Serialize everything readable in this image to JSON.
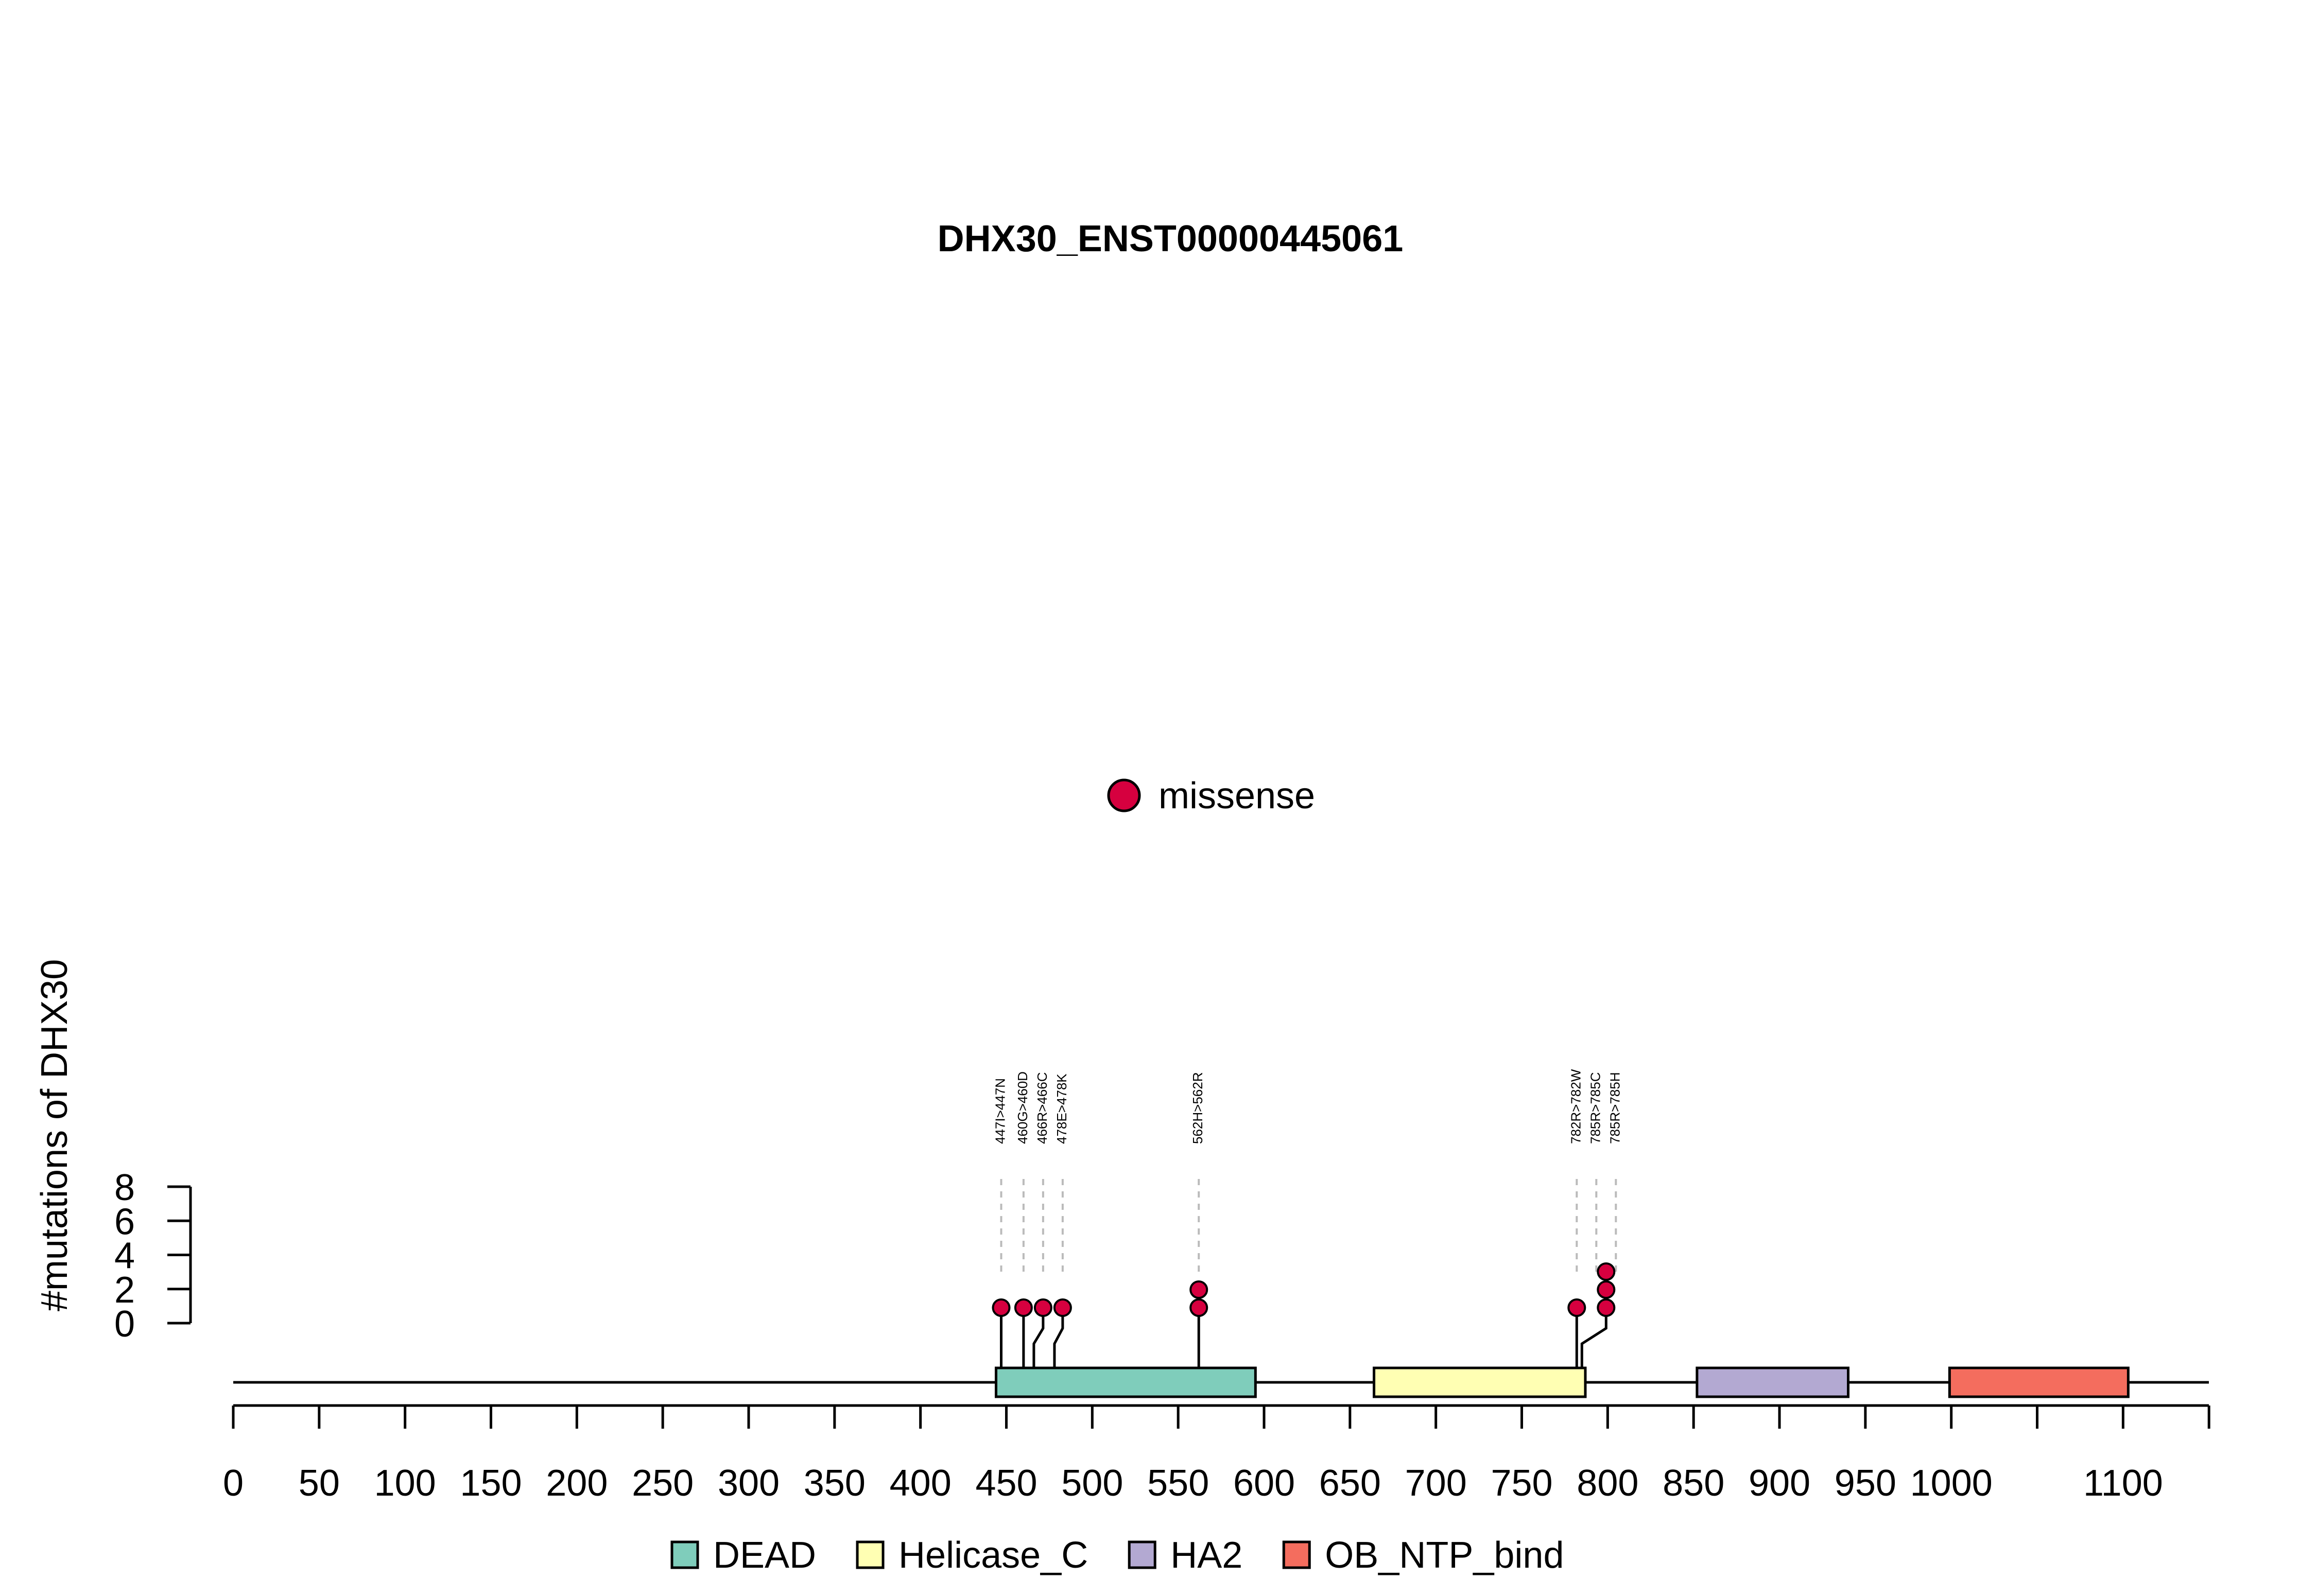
{
  "chart_data": {
    "type": "lollipop",
    "title": "DHX30_ENST00000445061",
    "ylabel": "#mutations of DHX30",
    "ylim": [
      0,
      8
    ],
    "yticks": [
      0,
      2,
      4,
      6,
      8
    ],
    "xlim": [
      0,
      1150
    ],
    "xticks": [
      0,
      50,
      100,
      150,
      200,
      250,
      300,
      350,
      400,
      450,
      500,
      550,
      600,
      650,
      700,
      750,
      800,
      850,
      900,
      950,
      1000,
      1100
    ],
    "protein_length": 1155,
    "mutation_legend": [
      {
        "label": "missense",
        "color": "#D6003F"
      }
    ],
    "domains": [
      {
        "name": "DEAD",
        "start": 444,
        "end": 595,
        "color": "#7FCDBB"
      },
      {
        "name": "Helicase_C",
        "start": 664,
        "end": 787,
        "color": "#FFFFB3"
      },
      {
        "name": "HA2",
        "start": 852,
        "end": 940,
        "color": "#B3A9D2"
      },
      {
        "name": "OB_NTP_bind",
        "start": 999,
        "end": 1103,
        "color": "#F46D5E"
      }
    ],
    "mutations": [
      {
        "label": "447I>447N",
        "position": 447,
        "count": 1,
        "type": "missense"
      },
      {
        "label": "460G>460D",
        "position": 460,
        "count": 1,
        "type": "missense"
      },
      {
        "label": "466R>466C",
        "position": 466,
        "count": 1,
        "type": "missense"
      },
      {
        "label": "478E>478K",
        "position": 478,
        "count": 1,
        "type": "missense"
      },
      {
        "label": "562H>562R",
        "position": 562,
        "count": 2,
        "type": "missense"
      },
      {
        "label": "782R>782W",
        "position": 782,
        "count": 1,
        "type": "missense"
      },
      {
        "label": "785R>785C",
        "position": 785,
        "count": 2,
        "type": "missense"
      },
      {
        "label": "785R>785H",
        "position": 785,
        "count": 1,
        "type": "missense"
      }
    ]
  }
}
